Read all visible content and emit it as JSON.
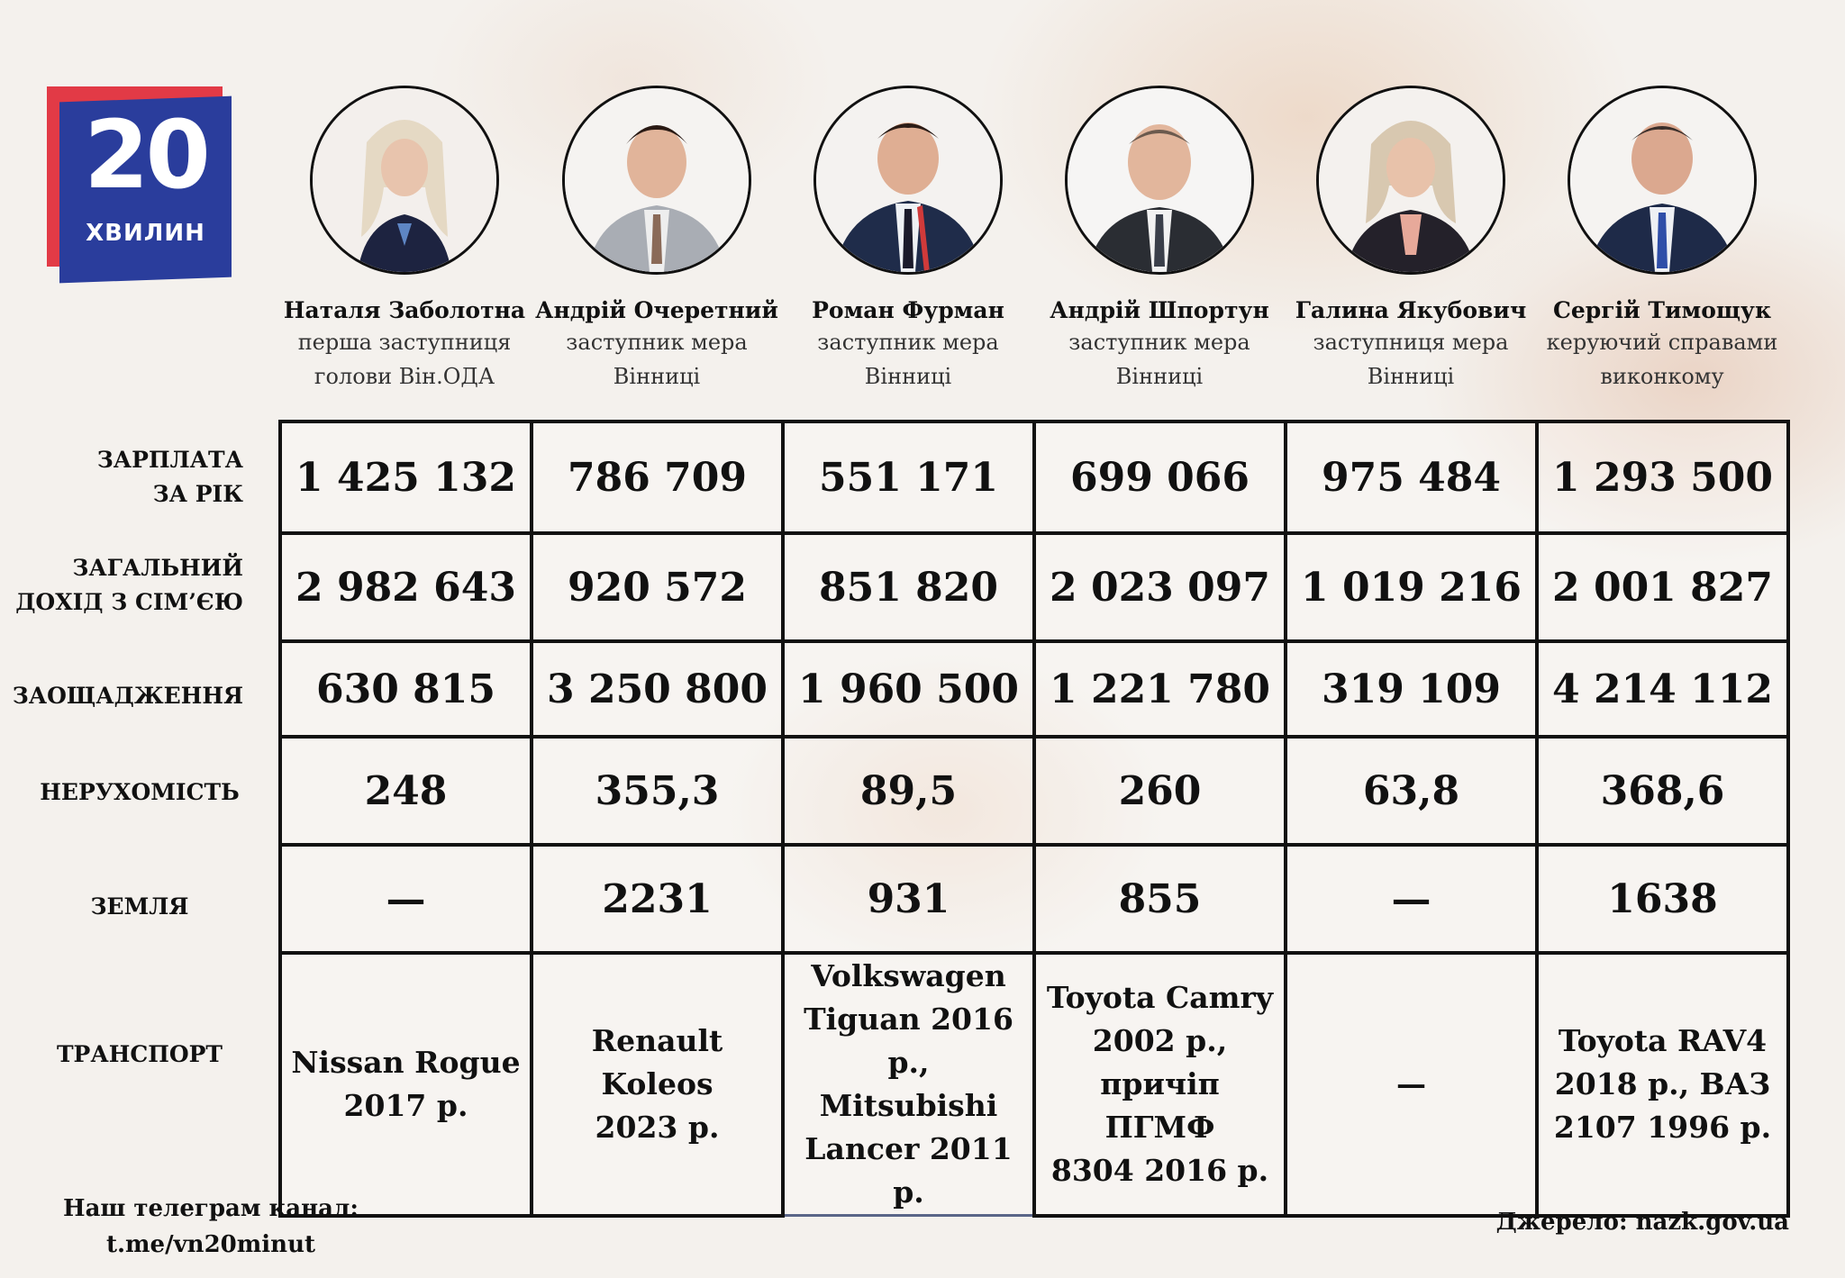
{
  "logo": {
    "number": "20",
    "word": "ХВИЛИН"
  },
  "people": [
    {
      "name": "Наталя Заболотна",
      "role_line1": "перша заступниця",
      "role_line2": "голови Він.ОДА"
    },
    {
      "name": "Андрій Очеретний",
      "role_line1": "заступник мера",
      "role_line2": "Вінниці"
    },
    {
      "name": "Роман Фурман",
      "role_line1": "заступник мера",
      "role_line2": "Вінниці"
    },
    {
      "name": "Андрій Шпортун",
      "role_line1": "заступник мера",
      "role_line2": "Вінниці"
    },
    {
      "name": "Галина Якубович",
      "role_line1": "заступниця мера",
      "role_line2": "Вінниці"
    },
    {
      "name": "Сергій Тимощук",
      "role_line1": "керуючий справами",
      "role_line2": "виконкому"
    }
  ],
  "rows": [
    {
      "label_line1": "ЗАРПЛАТА",
      "label_line2": "ЗА РІК",
      "values": [
        "1 425 132",
        "786 709",
        "551 171",
        "699 066",
        "975 484",
        "1 293 500"
      ]
    },
    {
      "label_line1": "ЗАГАЛЬНИЙ",
      "label_line2": "ДОХІД З СІМ’ЄЮ",
      "values": [
        "2 982 643",
        "920 572",
        "851 820",
        "2 023 097",
        "1 019 216",
        "2 001 827"
      ]
    },
    {
      "label_line1": "ЗАОЩАДЖЕННЯ",
      "label_line2": "",
      "values": [
        "630 815",
        "3 250 800",
        "1 960 500",
        "1 221 780",
        "319 109",
        "4 214 112"
      ]
    },
    {
      "label_line1": "НЕРУХОМІСТЬ",
      "label_line2": "",
      "values": [
        "248",
        "355,3",
        "89,5",
        "260",
        "63,8",
        "368,6"
      ]
    },
    {
      "label_line1": "ЗЕМЛЯ",
      "label_line2": "",
      "values": [
        "—",
        "2231",
        "931",
        "855",
        "—",
        "1638"
      ]
    },
    {
      "label_line1": "ТРАНСПОРТ",
      "label_line2": "",
      "values": [
        [
          "Nissan Rogue",
          "2017 р."
        ],
        [
          "Renault Koleos",
          "2023 р."
        ],
        [
          "Volkswagen",
          "Tiguan 2016 р.,",
          "Mitsubishi",
          "Lancer 2011 р."
        ],
        [
          "Toyota Camry",
          "2002 р.,",
          "причіп ПГМФ",
          "8304 2016 р."
        ],
        [
          "—"
        ],
        [
          "Toyota RAV4",
          "2018 р., ВАЗ",
          "2107 1996 р."
        ]
      ]
    }
  ],
  "footer": {
    "telegram_line1": "Наш телеграм канал:",
    "telegram_line2": "t.me/vn20minut",
    "source": "Джерело: nazk.gov.ua"
  },
  "colors": {
    "logo_red": "#e23a46",
    "logo_blue": "#2a3d9c",
    "background": "#f4f1ed",
    "grid": "#111111"
  }
}
